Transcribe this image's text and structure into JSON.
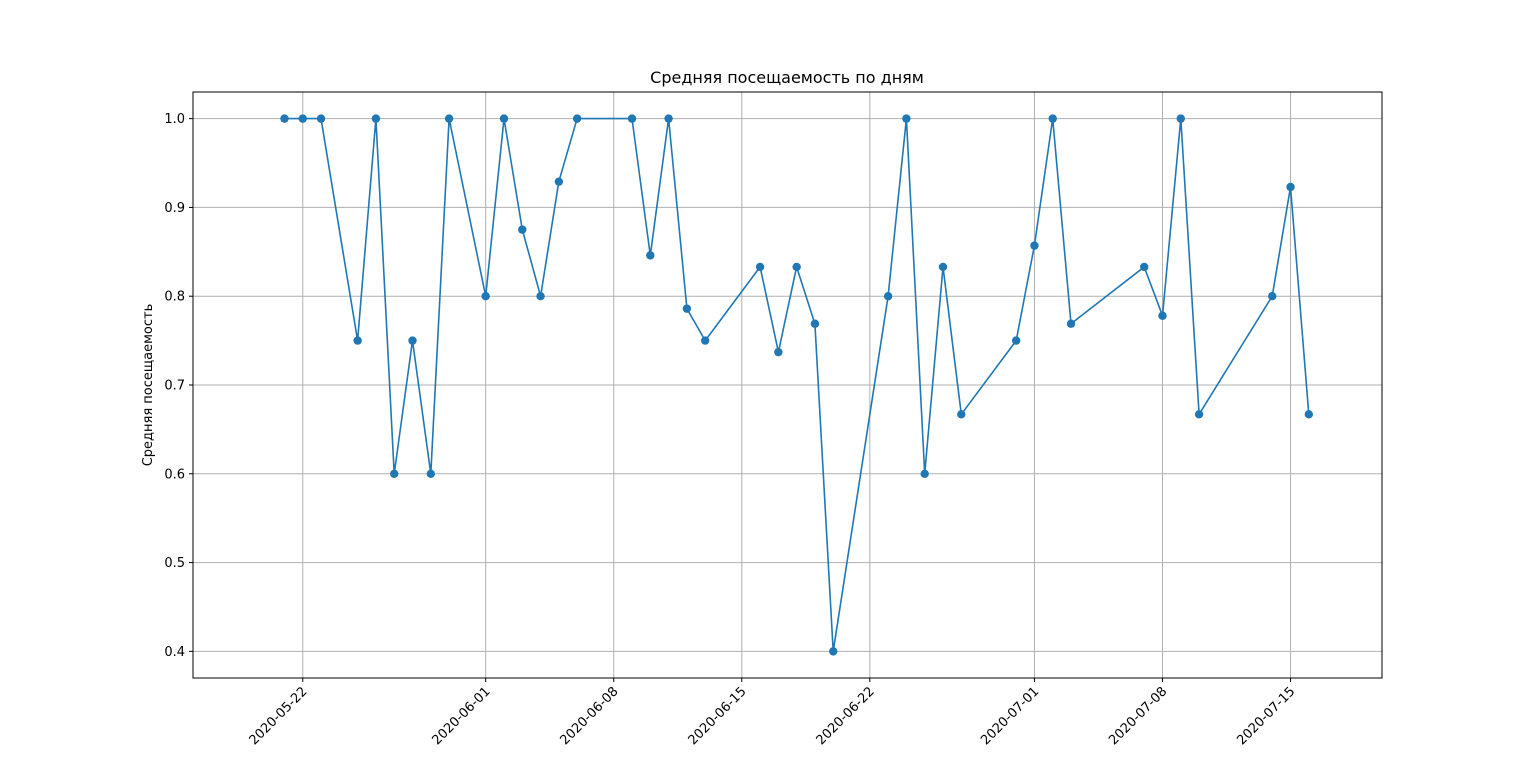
{
  "chart_data": {
    "type": "line",
    "title": "Средняя посещаемость по дням",
    "xlabel": "",
    "ylabel": "Средняя посещаемость",
    "ylim": [
      0.37,
      1.03
    ],
    "xlim": [
      "2020-05-16",
      "2020-07-20"
    ],
    "grid": true,
    "marker": "circle",
    "line_color": "#1f77b4",
    "y_ticks": [
      0.4,
      0.5,
      0.6,
      0.7,
      0.8,
      0.9,
      1.0
    ],
    "y_tick_labels": [
      "0.4",
      "0.5",
      "0.6",
      "0.7",
      "0.8",
      "0.9",
      "1.0"
    ],
    "x_ticks": [
      "2020-05-22",
      "2020-06-01",
      "2020-06-08",
      "2020-06-15",
      "2020-06-22",
      "2020-07-01",
      "2020-07-08",
      "2020-07-15"
    ],
    "x_tick_labels": [
      "2020-05-22",
      "2020-06-01",
      "2020-06-08",
      "2020-06-15",
      "2020-06-22",
      "2020-07-01",
      "2020-07-08",
      "2020-07-15"
    ],
    "series": [
      {
        "x": [
          "2020-05-21",
          "2020-05-22",
          "2020-05-23",
          "2020-05-25",
          "2020-05-26",
          "2020-05-27",
          "2020-05-28",
          "2020-05-29",
          "2020-05-30",
          "2020-06-01",
          "2020-06-02",
          "2020-06-03",
          "2020-06-04",
          "2020-06-05",
          "2020-06-06",
          "2020-06-09",
          "2020-06-10",
          "2020-06-11",
          "2020-06-12",
          "2020-06-13",
          "2020-06-16",
          "2020-06-17",
          "2020-06-18",
          "2020-06-19",
          "2020-06-20",
          "2020-06-23",
          "2020-06-24",
          "2020-06-25",
          "2020-06-26",
          "2020-06-27",
          "2020-06-30",
          "2020-07-01",
          "2020-07-02",
          "2020-07-03",
          "2020-07-07",
          "2020-07-08",
          "2020-07-09",
          "2020-07-10",
          "2020-07-14",
          "2020-07-15",
          "2020-07-16"
        ],
        "values": [
          1.0,
          1.0,
          1.0,
          0.75,
          1.0,
          0.6,
          0.75,
          0.6,
          1.0,
          0.8,
          1.0,
          0.875,
          0.8,
          0.929,
          1.0,
          1.0,
          0.846,
          1.0,
          0.786,
          0.75,
          0.833,
          0.737,
          0.833,
          0.769,
          0.4,
          0.8,
          1.0,
          0.6,
          0.833,
          0.667,
          0.75,
          0.857,
          1.0,
          0.769,
          0.833,
          0.778,
          1.0,
          0.667,
          0.8,
          0.923,
          0.667
        ]
      }
    ]
  }
}
